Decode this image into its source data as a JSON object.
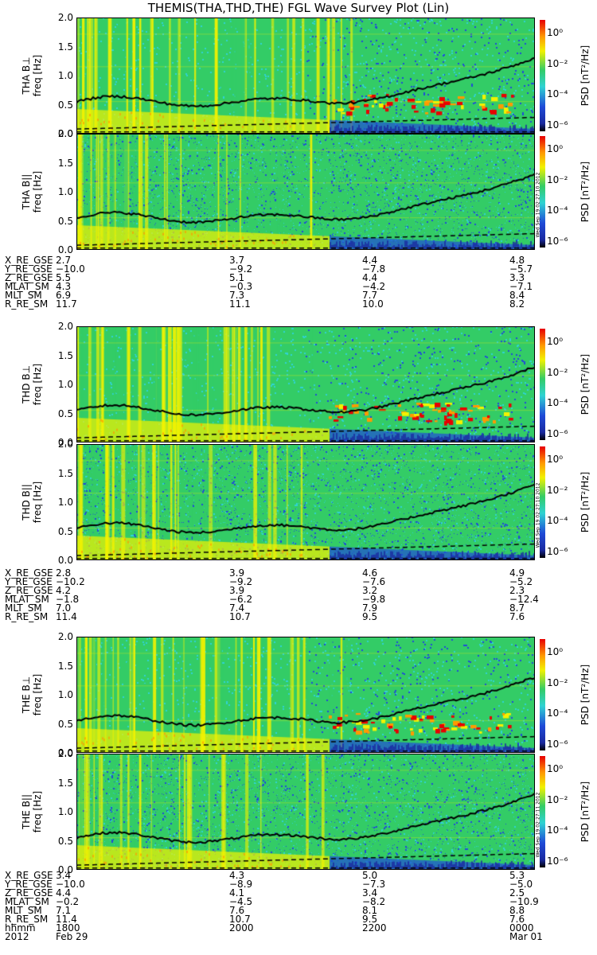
{
  "title": "THEMIS(THA,THD,THE) FGL Wave Survey Plot (Lin)",
  "colors": {
    "bg_green": "#33cc66",
    "cyan": "#2fd3d3",
    "yellow": "#f2f200",
    "orange": "#ff9a00",
    "red": "#e80000",
    "blue": "#1f4bd8",
    "darkblue": "#1a2aa0",
    "black": "#000000"
  },
  "chart_data": [
    {
      "type": "heatmap",
      "probe": "THA",
      "ylabel": "THA B⊥",
      "freq_label": "freq [Hz]",
      "yticks": [
        "0.0",
        "0.5",
        "1.0",
        "1.5",
        "2.0"
      ],
      "ylim": [
        0,
        2.0
      ],
      "colorbar_label": "PSD [nT²/Hz]",
      "colorbar_ticks": [
        "10⁰",
        "10⁻²",
        "10⁻⁴",
        "10⁻⁶"
      ],
      "colorbar_scale": "log"
    },
    {
      "type": "heatmap",
      "probe": "THA",
      "ylabel": "THA B||",
      "freq_label": "freq [Hz]",
      "yticks": [
        "0.0",
        "0.5",
        "1.0",
        "1.5",
        "2.0"
      ],
      "ylim": [
        0,
        2.0
      ],
      "colorbar_label": "PSD [nT²/Hz]",
      "colorbar_ticks": [
        "10⁰",
        "10⁻²",
        "10⁻⁴",
        "10⁻⁶"
      ],
      "colorbar_scale": "log",
      "stamp": "Wed Sep 19 02:27:10 2012"
    },
    {
      "type": "heatmap",
      "probe": "THD",
      "ylabel": "THD B⊥",
      "freq_label": "freq [Hz]",
      "yticks": [
        "0.0",
        "0.5",
        "1.0",
        "1.5",
        "2.0"
      ],
      "ylim": [
        0,
        2.0
      ],
      "colorbar_label": "PSD [nT²/Hz]",
      "colorbar_ticks": [
        "10⁰",
        "10⁻²",
        "10⁻⁴",
        "10⁻⁶"
      ],
      "colorbar_scale": "log"
    },
    {
      "type": "heatmap",
      "probe": "THD",
      "ylabel": "THD B||",
      "freq_label": "freq [Hz]",
      "yticks": [
        "0.0",
        "0.5",
        "1.0",
        "1.5",
        "2.0"
      ],
      "ylim": [
        0,
        2.0
      ],
      "colorbar_label": "PSD [nT²/Hz]",
      "colorbar_ticks": [
        "10⁰",
        "10⁻²",
        "10⁻⁴",
        "10⁻⁶"
      ],
      "colorbar_scale": "log",
      "stamp": "Wed Sep 19 02:27:10 2012"
    },
    {
      "type": "heatmap",
      "probe": "THE",
      "ylabel": "THE B⊥",
      "freq_label": "freq [Hz]",
      "yticks": [
        "0.0",
        "0.5",
        "1.0",
        "1.5",
        "2.0"
      ],
      "ylim": [
        0,
        2.0
      ],
      "colorbar_label": "PSD [nT²/Hz]",
      "colorbar_ticks": [
        "10⁰",
        "10⁻²",
        "10⁻⁴",
        "10⁻⁶"
      ],
      "colorbar_scale": "log"
    },
    {
      "type": "heatmap",
      "probe": "THE",
      "ylabel": "THE B||",
      "freq_label": "freq [Hz]",
      "yticks": [
        "0.0",
        "0.5",
        "1.0",
        "1.5",
        "2.0"
      ],
      "ylim": [
        0,
        2.0
      ],
      "colorbar_label": "PSD [nT²/Hz]",
      "colorbar_ticks": [
        "10⁰",
        "10⁻²",
        "10⁻⁴",
        "10⁻⁶"
      ],
      "colorbar_scale": "log",
      "stamp": "Wed Sep 19 02:27:11 2012"
    }
  ],
  "ephemeris": [
    {
      "probe": "THA",
      "rows": [
        {
          "label": "X_RE_GSE",
          "values": [
            "2.7",
            "3.7",
            "4.4",
            "4.8"
          ]
        },
        {
          "label": "Y_RE_GSE",
          "values": [
            "−10.0",
            "−9.2",
            "−7.8",
            "−5.7"
          ]
        },
        {
          "label": "Z_RE_GSE",
          "values": [
            "5.5",
            "5.1",
            "4.4",
            "3.3"
          ]
        },
        {
          "label": "MLAT_SM",
          "values": [
            "4.3",
            "−0.3",
            "−4.2",
            "−7.1"
          ]
        },
        {
          "label": "MLT_SM",
          "values": [
            "6.9",
            "7.3",
            "7.7",
            "8.4"
          ]
        },
        {
          "label": "R_RE_SM",
          "values": [
            "11.7",
            "11.1",
            "10.0",
            "8.2"
          ]
        }
      ]
    },
    {
      "probe": "THD",
      "rows": [
        {
          "label": "X_RE_GSE",
          "values": [
            "2.8",
            "3.9",
            "4.6",
            "4.9"
          ]
        },
        {
          "label": "Y_RE_GSE",
          "values": [
            "−10.2",
            "−9.2",
            "−7.6",
            "−5.2"
          ]
        },
        {
          "label": "Z_RE_GSE",
          "values": [
            "4.2",
            "3.9",
            "3.2",
            "2.3"
          ]
        },
        {
          "label": "MLAT_SM",
          "values": [
            "−1.8",
            "−6.2",
            "−9.8",
            "−12.4"
          ]
        },
        {
          "label": "MLT_SM",
          "values": [
            "7.0",
            "7.4",
            "7.9",
            "8.7"
          ]
        },
        {
          "label": "R_RE_SM",
          "values": [
            "11.4",
            "10.7",
            "9.5",
            "7.6"
          ]
        }
      ]
    },
    {
      "probe": "THE",
      "rows": [
        {
          "label": "X_RE_GSE",
          "values": [
            "3.4",
            "4.3",
            "5.0",
            "5.3"
          ]
        },
        {
          "label": "Y_RE_GSE",
          "values": [
            "−10.0",
            "−8.9",
            "−7.3",
            "−5.0"
          ]
        },
        {
          "label": "Z_RE_GSE",
          "values": [
            "4.4",
            "4.1",
            "3.4",
            "2.5"
          ]
        },
        {
          "label": "MLAT_SM",
          "values": [
            "−0.2",
            "−4.5",
            "−8.2",
            "−10.9"
          ]
        },
        {
          "label": "MLT_SM",
          "values": [
            "7.1",
            "7.6",
            "8.1",
            "8.8"
          ]
        },
        {
          "label": "R_RE_SM",
          "values": [
            "11.4",
            "10.7",
            "9.5",
            "7.6"
          ]
        },
        {
          "label": "hhmm",
          "values": [
            "1800",
            "2000",
            "2200",
            "0000"
          ]
        },
        {
          "label": "2012",
          "values": [
            "Feb 29",
            "",
            "",
            "Mar 01"
          ]
        }
      ]
    }
  ]
}
